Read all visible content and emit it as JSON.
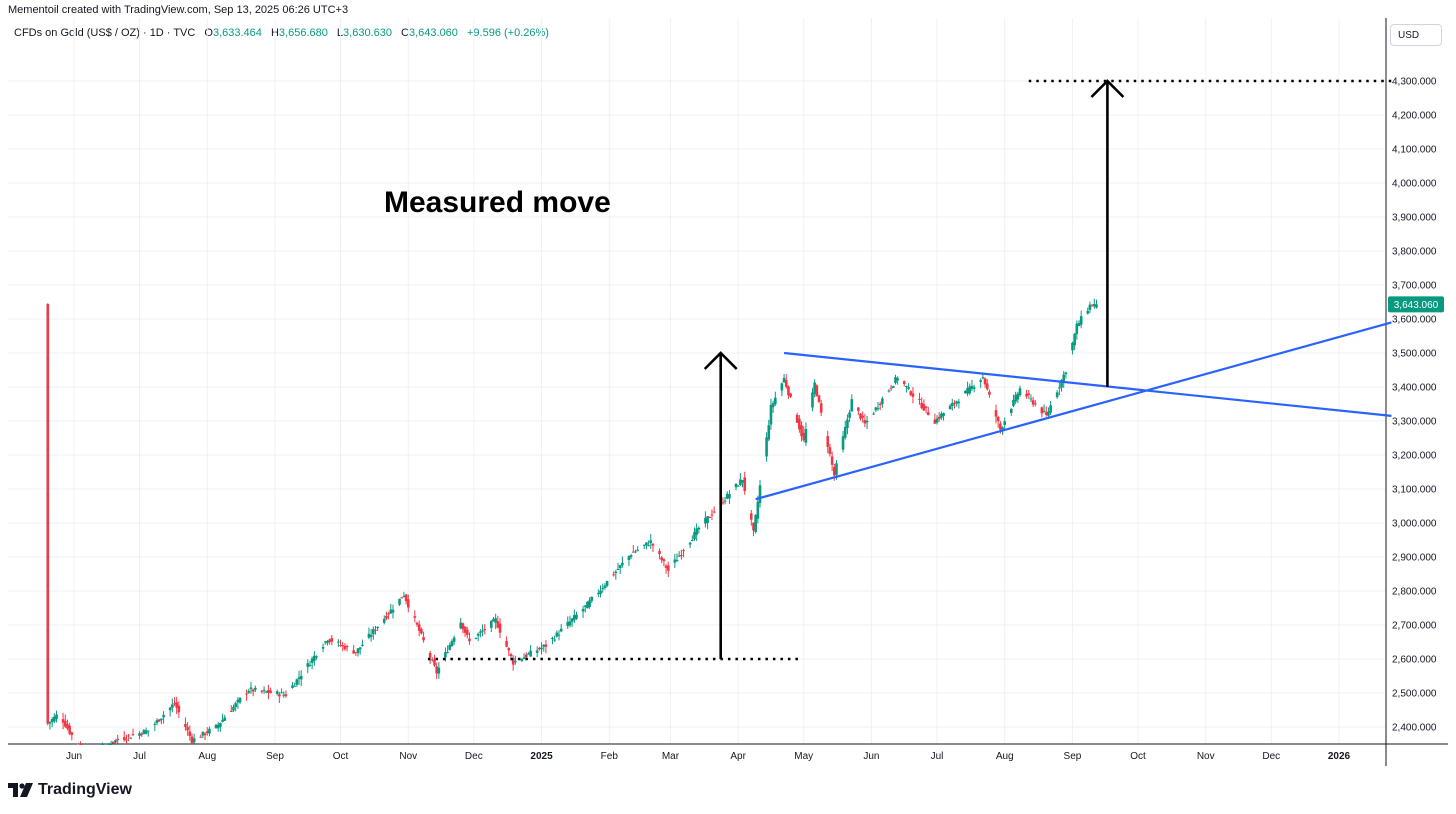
{
  "header": {
    "created_by": "Mementoil created with TradingView.com, Sep 13, 2025 06:26 UTC+3"
  },
  "legend": {
    "symbol": "CFDs on Gold (US$ / OZ) · 1D · TVC",
    "open_label": "O",
    "open": "3,633.464",
    "high_label": "H",
    "high": "3,656.680",
    "low_label": "L",
    "low": "3,630.630",
    "close_label": "C",
    "close": "3,643.060",
    "change": "+9.596 (+0.26%)"
  },
  "price_scale": {
    "currency": "USD",
    "last_price_label": "3,643.060",
    "last_price_color": "#089981"
  },
  "brand": {
    "logo_icon": "tradingview-logo-icon",
    "name": "TradingView"
  },
  "colors": {
    "up": "#089981",
    "down": "#f23645",
    "trendline": "#2962ff",
    "grid": "#eef1f5"
  },
  "chart_data": {
    "type": "candlestick",
    "symbol": "CFDs on Gold (US$ / OZ)",
    "interval": "1D",
    "ylim": [
      2360,
      4360
    ],
    "y_ticks": [
      "2,400.000",
      "2,500.000",
      "2,600.000",
      "2,700.000",
      "2,800.000",
      "2,900.000",
      "3,000.000",
      "3,100.000",
      "3,200.000",
      "3,300.000",
      "3,400.000",
      "3,500.000",
      "3,600.000",
      "3,700.000",
      "3,800.000",
      "3,900.000",
      "4,000.000",
      "4,100.000",
      "4,200.000",
      "4,300.000"
    ],
    "x_ticks": [
      {
        "label": "Jun",
        "date": "2024-06-01"
      },
      {
        "label": "Jul",
        "date": "2024-07-01"
      },
      {
        "label": "Aug",
        "date": "2024-08-01"
      },
      {
        "label": "Sep",
        "date": "2024-09-01"
      },
      {
        "label": "Oct",
        "date": "2024-10-01"
      },
      {
        "label": "Nov",
        "date": "2024-11-01"
      },
      {
        "label": "Dec",
        "date": "2024-12-01"
      },
      {
        "label": "2025",
        "date": "2025-01-01"
      },
      {
        "label": "Feb",
        "date": "2025-02-01"
      },
      {
        "label": "Mar",
        "date": "2025-03-01"
      },
      {
        "label": "Apr",
        "date": "2025-04-01"
      },
      {
        "label": "May",
        "date": "2025-05-01"
      },
      {
        "label": "Jun",
        "date": "2025-06-01"
      },
      {
        "label": "Jul",
        "date": "2025-07-01"
      },
      {
        "label": "Aug",
        "date": "2025-08-01"
      },
      {
        "label": "Sep",
        "date": "2025-09-01"
      },
      {
        "label": "Oct",
        "date": "2025-10-01"
      },
      {
        "label": "Nov",
        "date": "2025-11-01"
      },
      {
        "label": "Dec",
        "date": "2025-12-01"
      },
      {
        "label": "2026",
        "date": "2026-01-01"
      }
    ],
    "price_path": [
      [
        "2024-05-20",
        2410
      ],
      [
        "2024-05-25",
        2440
      ],
      [
        "2024-06-07",
        2300
      ],
      [
        "2024-06-20",
        2360
      ],
      [
        "2024-07-05",
        2390
      ],
      [
        "2024-07-17",
        2470
      ],
      [
        "2024-07-25",
        2360
      ],
      [
        "2024-08-05",
        2400
      ],
      [
        "2024-08-20",
        2510
      ],
      [
        "2024-09-06",
        2495
      ],
      [
        "2024-09-25",
        2660
      ],
      [
        "2024-10-08",
        2620
      ],
      [
        "2024-10-21",
        2720
      ],
      [
        "2024-10-30",
        2790
      ],
      [
        "2024-11-14",
        2560
      ],
      [
        "2024-11-25",
        2710
      ],
      [
        "2024-11-29",
        2650
      ],
      [
        "2024-12-11",
        2715
      ],
      [
        "2024-12-19",
        2590
      ],
      [
        "2025-01-03",
        2640
      ],
      [
        "2025-01-22",
        2760
      ],
      [
        "2025-02-11",
        2910
      ],
      [
        "2025-02-20",
        2945
      ],
      [
        "2025-02-28",
        2860
      ],
      [
        "2025-03-14",
        2985
      ],
      [
        "2025-04-03",
        3130
      ],
      [
        "2025-04-08",
        2970
      ],
      [
        "2025-04-16",
        3340
      ],
      [
        "2025-04-22",
        3425
      ],
      [
        "2025-05-01",
        3240
      ],
      [
        "2025-05-06",
        3410
      ],
      [
        "2025-05-15",
        3140
      ],
      [
        "2025-05-23",
        3360
      ],
      [
        "2025-05-29",
        3290
      ],
      [
        "2025-06-13",
        3430
      ],
      [
        "2025-06-30",
        3300
      ],
      [
        "2025-07-22",
        3430
      ],
      [
        "2025-07-30",
        3275
      ],
      [
        "2025-08-08",
        3395
      ],
      [
        "2025-08-20",
        3315
      ],
      [
        "2025-08-29",
        3450
      ],
      [
        "2025-09-03",
        3580
      ],
      [
        "2025-09-09",
        3640
      ],
      [
        "2025-09-12",
        3643
      ]
    ],
    "last_candle": {
      "date": "2025-09-12",
      "open": 3633.464,
      "high": 3656.68,
      "low": 3630.63,
      "close": 3643.06
    },
    "drawings": {
      "upper_trendline": [
        [
          "2025-04-22",
          3500
        ],
        [
          "2026-01-25",
          3315
        ]
      ],
      "lower_trendline": [
        [
          "2025-04-09",
          3070
        ],
        [
          "2026-01-25",
          3590
        ]
      ],
      "low_level": {
        "from": "2024-11-10",
        "to": "2025-04-30",
        "price": 2600
      },
      "target_level": {
        "from": "2025-08-12",
        "to": "2026-01-25",
        "price": 4300
      },
      "measured_arrow_1": {
        "date": "2025-03-24",
        "from": 2600,
        "to": 3500
      },
      "measured_arrow_2": {
        "date": "2025-09-17",
        "from": 3400,
        "to": 4300
      }
    },
    "annotation": "Measured move"
  }
}
